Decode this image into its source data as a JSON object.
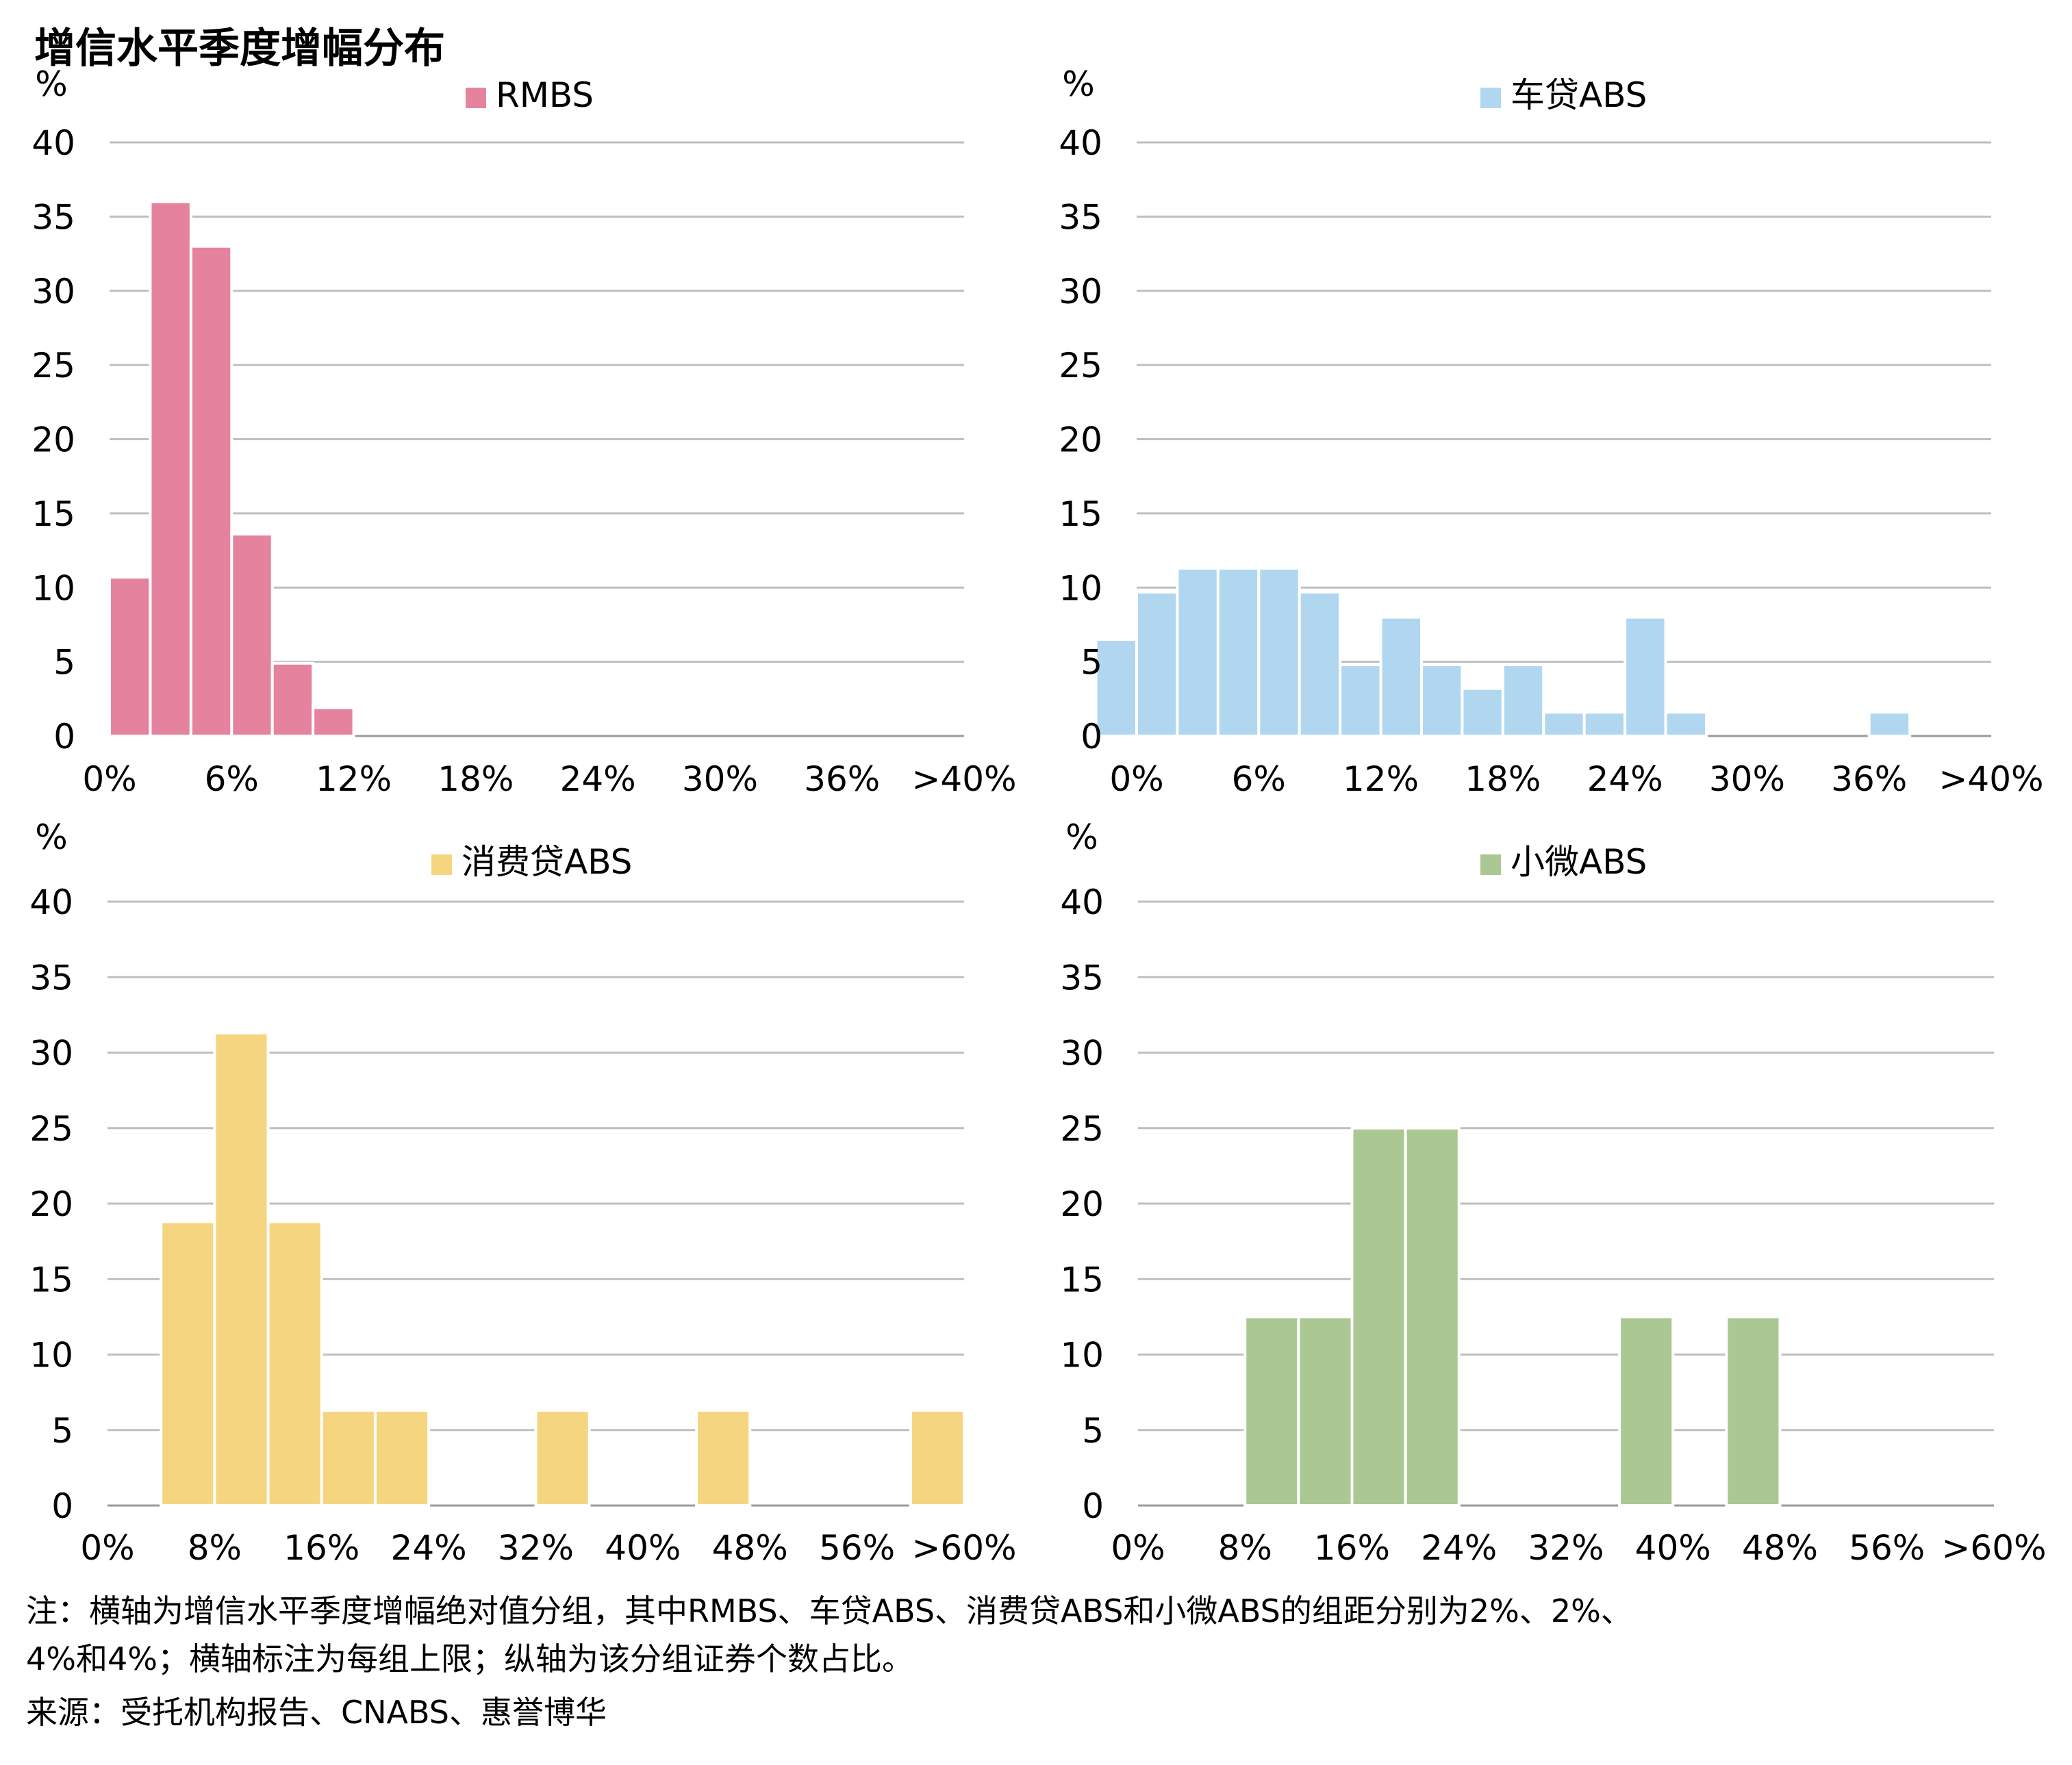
{
  "title": "增信水平季度增幅分布",
  "chart_data": [
    {
      "type": "bar",
      "legend": "RMBS",
      "color": "#E5839F",
      "unit": "%",
      "ylim": [
        0,
        40
      ],
      "yticks": [
        "0",
        "5",
        "10",
        "15",
        "20",
        "25",
        "30",
        "35",
        "40"
      ],
      "xticks": [
        "0%",
        "6%",
        "12%",
        "18%",
        "24%",
        "30%",
        "36%",
        ">40%"
      ],
      "bin_width": 2,
      "x_max": 42,
      "bars": [
        {
          "x": 2,
          "value": 10.7
        },
        {
          "x": 4,
          "value": 36.0
        },
        {
          "x": 6,
          "value": 33.0
        },
        {
          "x": 8,
          "value": 13.6
        },
        {
          "x": 10,
          "value": 4.9
        },
        {
          "x": 12,
          "value": 1.9
        }
      ],
      "grid": true
    },
    {
      "type": "bar",
      "legend": "车贷ABS",
      "color": "#B1D7F0",
      "unit": "%",
      "ylim": [
        0,
        40
      ],
      "yticks": [
        "0",
        "5",
        "10",
        "15",
        "20",
        "25",
        "30",
        "35",
        "40"
      ],
      "xticks": [
        "0%",
        "6%",
        "12%",
        "18%",
        "24%",
        "30%",
        "36%",
        ">40%"
      ],
      "bin_width": 2,
      "x_max": 42,
      "bars": [
        {
          "x": 0,
          "value": 6.5
        },
        {
          "x": 2,
          "value": 9.7
        },
        {
          "x": 4,
          "value": 11.3
        },
        {
          "x": 6,
          "value": 11.3
        },
        {
          "x": 8,
          "value": 11.3
        },
        {
          "x": 10,
          "value": 9.7
        },
        {
          "x": 12,
          "value": 4.8
        },
        {
          "x": 14,
          "value": 8.0
        },
        {
          "x": 16,
          "value": 4.8
        },
        {
          "x": 18,
          "value": 3.2
        },
        {
          "x": 20,
          "value": 4.8
        },
        {
          "x": 22,
          "value": 1.6
        },
        {
          "x": 24,
          "value": 1.6
        },
        {
          "x": 26,
          "value": 8.0
        },
        {
          "x": 28,
          "value": 1.6
        },
        {
          "x": 38,
          "value": 1.6
        }
      ],
      "grid": true
    },
    {
      "type": "bar",
      "legend": "消费贷ABS",
      "color": "#F5D57F",
      "unit": "%",
      "ylim": [
        0,
        40
      ],
      "yticks": [
        "0",
        "5",
        "10",
        "15",
        "20",
        "25",
        "30",
        "35",
        "40"
      ],
      "xticks": [
        "0%",
        "8%",
        "16%",
        "24%",
        "32%",
        "40%",
        "48%",
        "56%",
        ">60%"
      ],
      "bin_width": 4,
      "x_max": 64,
      "bars": [
        {
          "x": 8,
          "value": 18.8
        },
        {
          "x": 12,
          "value": 31.3
        },
        {
          "x": 16,
          "value": 18.8
        },
        {
          "x": 20,
          "value": 6.3
        },
        {
          "x": 24,
          "value": 6.3
        },
        {
          "x": 36,
          "value": 6.3
        },
        {
          "x": 48,
          "value": 6.3
        },
        {
          "x": 64,
          "value": 6.3
        }
      ],
      "grid": true
    },
    {
      "type": "bar",
      "legend": "小微ABS",
      "color": "#ABC793",
      "unit": "%",
      "ylim": [
        0,
        40
      ],
      "yticks": [
        "0",
        "5",
        "10",
        "15",
        "20",
        "25",
        "30",
        "35",
        "40"
      ],
      "xticks": [
        "0%",
        "8%",
        "16%",
        "24%",
        "32%",
        "40%",
        "48%",
        "56%",
        ">60%"
      ],
      "bin_width": 4,
      "x_max": 64,
      "bars": [
        {
          "x": 12,
          "value": 12.5
        },
        {
          "x": 16,
          "value": 12.5
        },
        {
          "x": 20,
          "value": 25.0
        },
        {
          "x": 24,
          "value": 25.0
        },
        {
          "x": 40,
          "value": 12.5
        },
        {
          "x": 48,
          "value": 12.5
        }
      ],
      "grid": true
    }
  ],
  "notes": {
    "line1": "注：横轴为增信水平季度增幅绝对值分组，其中RMBS、车贷ABS、消费贷ABS和小微ABS的组距分别为2%、2%、",
    "line2": "4%和4%；横轴标注为每组上限；纵轴为该分组证券个数占比。",
    "source": "来源：受托机构报告、CNABS、惠誉博华"
  }
}
